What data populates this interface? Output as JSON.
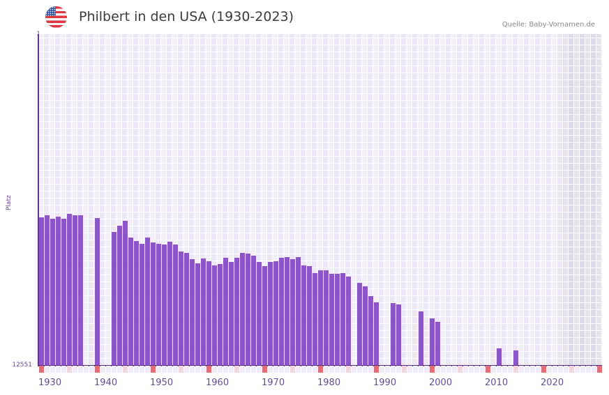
{
  "header": {
    "flag_icon": "us-flag-icon",
    "title": "Philbert in den USA (1930-2023)",
    "source": "Quelle: Baby-Vornamen.de"
  },
  "colors": {
    "bar": "#8c56c8",
    "axis": "#6a2f9a",
    "grid_light": "#f3effb",
    "grid_dark": "#ece6f7",
    "future_light": "#e6e2ef",
    "future_dark": "#dfd9ec",
    "marker_decade": "#e07078",
    "marker_half": "#f4d4dc",
    "marker_default": "#f0ecf8",
    "text": "#6a4a9c"
  },
  "chart_data": {
    "type": "bar",
    "title": "Philbert in den USA (1930-2023)",
    "xlabel": "",
    "ylabel": "Platz",
    "y_axis_inverted": true,
    "ylim": [
      1,
      12551
    ],
    "yticks": [
      "1",
      "12551"
    ],
    "x_range": [
      1930,
      2030
    ],
    "xticks": [
      "1930",
      "1940",
      "1950",
      "1960",
      "1970",
      "1980",
      "1990",
      "2000",
      "2010",
      "2020"
    ],
    "shaded_future_from": 2024,
    "grid": true,
    "legend": null,
    "categories": [
      1930,
      1931,
      1932,
      1933,
      1934,
      1935,
      1936,
      1937,
      1940,
      1943,
      1944,
      1945,
      1946,
      1947,
      1948,
      1949,
      1950,
      1951,
      1952,
      1953,
      1954,
      1955,
      1956,
      1957,
      1958,
      1959,
      1960,
      1961,
      1962,
      1963,
      1964,
      1965,
      1966,
      1967,
      1968,
      1969,
      1970,
      1971,
      1972,
      1973,
      1974,
      1975,
      1976,
      1977,
      1978,
      1979,
      1980,
      1981,
      1982,
      1983,
      1984,
      1985,
      1987,
      1988,
      1989,
      1990,
      1993,
      1994,
      1998,
      2000,
      2001,
      2012,
      2015
    ],
    "series": [
      {
        "name": "Platz",
        "values": [
          6936,
          6857,
          6989,
          6910,
          6989,
          6805,
          6857,
          6857,
          6963,
          7490,
          7253,
          7068,
          7701,
          7833,
          7938,
          7701,
          7886,
          7938,
          7965,
          7859,
          7965,
          8229,
          8281,
          8519,
          8677,
          8492,
          8598,
          8756,
          8703,
          8466,
          8624,
          8466,
          8281,
          8307,
          8387,
          8624,
          8782,
          8624,
          8598,
          8466,
          8440,
          8519,
          8440,
          8756,
          8782,
          9046,
          8941,
          8941,
          9072,
          9072,
          9046,
          9178,
          9416,
          9547,
          9917,
          10154,
          10180,
          10233,
          10497,
          10761,
          10893,
          11895,
          11974
        ]
      }
    ]
  }
}
